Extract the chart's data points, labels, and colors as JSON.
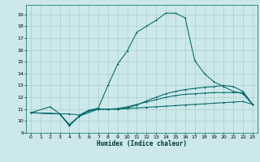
{
  "title": "",
  "xlabel": "Humidex (Indice chaleur)",
  "bg_color": "#cce8ea",
  "grid_color": "#aacccc",
  "line_color": "#006868",
  "xlim": [
    -0.5,
    23.5
  ],
  "ylim": [
    9.0,
    19.8
  ],
  "xticks": [
    0,
    1,
    2,
    3,
    4,
    5,
    6,
    7,
    8,
    9,
    10,
    11,
    12,
    13,
    14,
    15,
    16,
    17,
    18,
    19,
    20,
    21,
    22,
    23
  ],
  "yticks": [
    9,
    10,
    11,
    12,
    13,
    14,
    15,
    16,
    17,
    18,
    19
  ],
  "curve1_x": [
    0,
    2,
    3,
    4,
    5,
    6,
    7,
    8,
    9,
    10,
    11,
    12,
    13,
    14,
    15,
    16,
    17,
    18,
    19,
    20,
    21,
    22,
    23
  ],
  "curve1_y": [
    10.7,
    11.2,
    10.6,
    10.6,
    10.5,
    10.9,
    11.1,
    13.0,
    14.8,
    15.9,
    17.5,
    18.0,
    18.5,
    19.1,
    19.1,
    18.7,
    15.1,
    14.0,
    13.3,
    12.9,
    12.5,
    12.3,
    11.4
  ],
  "curve2_x": [
    0,
    3,
    4,
    5,
    6,
    7,
    8,
    9,
    10,
    11,
    12,
    13,
    14,
    15,
    16,
    17,
    18,
    19,
    20,
    21,
    22,
    23
  ],
  "curve2_y": [
    10.7,
    10.6,
    9.7,
    10.4,
    10.85,
    11.0,
    11.0,
    11.0,
    11.05,
    11.1,
    11.15,
    11.2,
    11.25,
    11.3,
    11.35,
    11.4,
    11.45,
    11.5,
    11.55,
    11.6,
    11.65,
    11.4
  ],
  "curve3_x": [
    0,
    3,
    4,
    5,
    6,
    7,
    8,
    9,
    10,
    11,
    12,
    13,
    14,
    15,
    16,
    17,
    18,
    19,
    20,
    21,
    22,
    23
  ],
  "curve3_y": [
    10.7,
    10.6,
    9.6,
    10.4,
    10.85,
    11.0,
    11.0,
    11.05,
    11.2,
    11.4,
    11.6,
    11.8,
    12.0,
    12.15,
    12.25,
    12.3,
    12.35,
    12.4,
    12.4,
    12.4,
    12.4,
    11.4
  ],
  "curve4_x": [
    0,
    3,
    4,
    5,
    7,
    9,
    10,
    11,
    12,
    13,
    14,
    15,
    16,
    17,
    18,
    19,
    20,
    21,
    22,
    23
  ],
  "curve4_y": [
    10.7,
    10.6,
    9.6,
    10.4,
    11.0,
    11.0,
    11.1,
    11.35,
    11.7,
    12.0,
    12.3,
    12.5,
    12.65,
    12.75,
    12.85,
    12.9,
    13.0,
    12.9,
    12.5,
    11.4
  ]
}
